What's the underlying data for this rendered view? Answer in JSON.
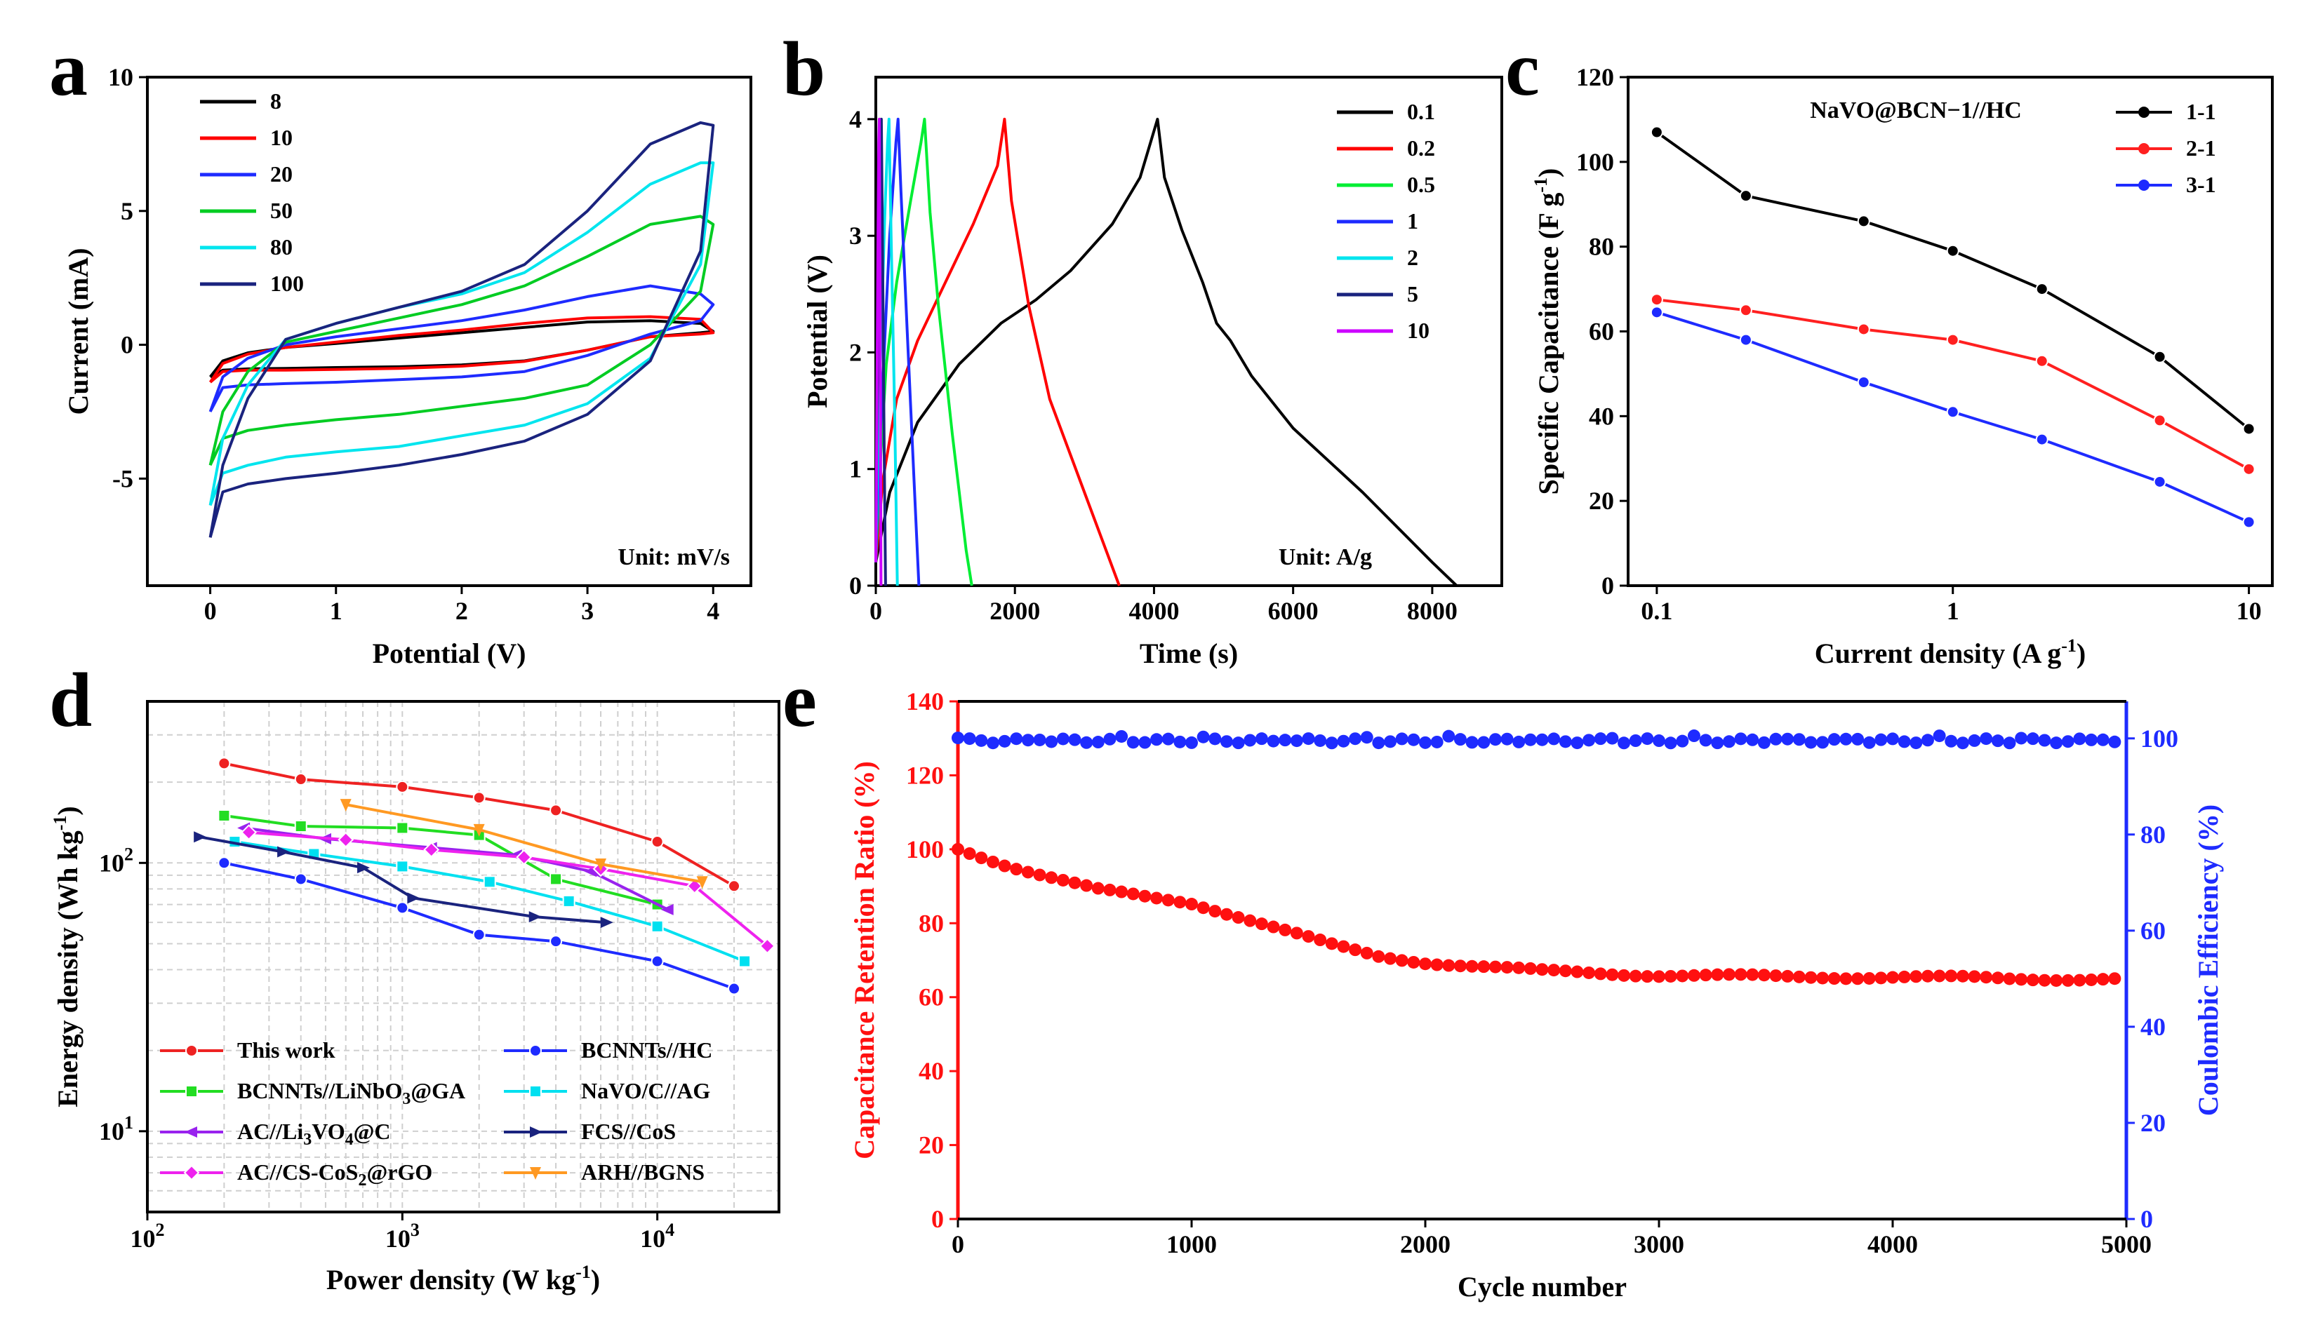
{
  "chart_data": [
    {
      "panel": "a",
      "type": "line",
      "xlabel": "Potential (V)",
      "ylabel": "Current (mA)",
      "xlim": [
        -0.5,
        4.3
      ],
      "ylim": [
        -9,
        10
      ],
      "xticks": [
        0,
        1,
        2,
        3,
        4
      ],
      "yticks": [
        -5,
        0,
        5,
        10
      ],
      "annotation": "Unit: mV/s",
      "series": [
        {
          "name": "8",
          "color": "#000000",
          "x": [
            0,
            0.1,
            0.3,
            0.6,
            1,
            1.5,
            2,
            2.5,
            3,
            3.5,
            3.9,
            4,
            3.9,
            3.5,
            3,
            2.5,
            2,
            1.5,
            1,
            0.6,
            0.3,
            0.1,
            0
          ],
          "y": [
            -1.2,
            -0.95,
            -0.9,
            -0.88,
            -0.85,
            -0.82,
            -0.75,
            -0.6,
            -0.2,
            0.3,
            0.45,
            0.5,
            0.8,
            0.9,
            0.85,
            0.65,
            0.45,
            0.25,
            0.05,
            -0.1,
            -0.3,
            -0.6,
            -1.2
          ]
        },
        {
          "name": "10",
          "color": "#ff0000",
          "x": [
            0,
            0.1,
            0.3,
            0.6,
            1,
            1.5,
            2,
            2.5,
            3,
            3.5,
            3.9,
            4,
            3.9,
            3.5,
            3,
            2.5,
            2,
            1.5,
            1,
            0.6,
            0.3,
            0.1,
            0
          ],
          "y": [
            -1.4,
            -1.0,
            -0.95,
            -0.95,
            -0.92,
            -0.88,
            -0.8,
            -0.62,
            -0.2,
            0.3,
            0.4,
            0.45,
            0.95,
            1.05,
            1.0,
            0.8,
            0.55,
            0.35,
            0.1,
            -0.1,
            -0.35,
            -0.7,
            -1.4
          ]
        },
        {
          "name": "20",
          "color": "#1e2bff",
          "x": [
            0,
            0.1,
            0.3,
            0.6,
            1,
            1.5,
            2,
            2.5,
            3,
            3.5,
            3.9,
            4,
            3.9,
            3.5,
            3,
            2.5,
            2,
            1.5,
            1,
            0.6,
            0.3,
            0.1,
            0
          ],
          "y": [
            -2.5,
            -1.6,
            -1.5,
            -1.45,
            -1.4,
            -1.3,
            -1.2,
            -1.0,
            -0.4,
            0.4,
            0.9,
            1.5,
            1.9,
            2.2,
            1.8,
            1.3,
            0.9,
            0.6,
            0.3,
            0.0,
            -0.5,
            -1.2,
            -2.5
          ]
        },
        {
          "name": "50",
          "color": "#00cc22",
          "x": [
            0,
            0.1,
            0.3,
            0.6,
            1,
            1.5,
            2,
            2.5,
            3,
            3.5,
            3.9,
            4,
            3.9,
            3.5,
            3,
            2.5,
            2,
            1.5,
            1,
            0.6,
            0.3,
            0.1,
            0
          ],
          "y": [
            -4.5,
            -3.5,
            -3.2,
            -3.0,
            -2.8,
            -2.6,
            -2.3,
            -2.0,
            -1.5,
            0.0,
            2.0,
            4.5,
            4.8,
            4.5,
            3.3,
            2.2,
            1.5,
            1.0,
            0.5,
            0.1,
            -1.0,
            -2.5,
            -4.5
          ]
        },
        {
          "name": "80",
          "color": "#00e5ee",
          "x": [
            0,
            0.1,
            0.3,
            0.6,
            1,
            1.5,
            2,
            2.5,
            3,
            3.5,
            3.9,
            4,
            3.9,
            3.5,
            3,
            2.5,
            2,
            1.5,
            1,
            0.6,
            0.3,
            0.1,
            0
          ],
          "y": [
            -6.0,
            -4.8,
            -4.5,
            -4.2,
            -4.0,
            -3.8,
            -3.4,
            -3.0,
            -2.2,
            -0.5,
            3.0,
            6.8,
            6.8,
            6.0,
            4.2,
            2.7,
            1.9,
            1.4,
            0.8,
            0.2,
            -1.5,
            -3.5,
            -6.0
          ]
        },
        {
          "name": "100",
          "color": "#1a237e",
          "x": [
            0,
            0.1,
            0.3,
            0.6,
            1,
            1.5,
            2,
            2.5,
            3,
            3.5,
            3.9,
            4,
            3.9,
            3.5,
            3,
            2.5,
            2,
            1.5,
            1,
            0.6,
            0.3,
            0.1,
            0
          ],
          "y": [
            -7.2,
            -5.5,
            -5.2,
            -5.0,
            -4.8,
            -4.5,
            -4.1,
            -3.6,
            -2.6,
            -0.6,
            3.5,
            8.2,
            8.3,
            7.5,
            5.0,
            3.0,
            2.0,
            1.4,
            0.8,
            0.2,
            -2.0,
            -4.5,
            -7.2
          ]
        }
      ]
    },
    {
      "panel": "b",
      "type": "line",
      "xlabel": "Time (s)",
      "ylabel": "Potential (V)",
      "xlim": [
        0,
        9000
      ],
      "ylim": [
        0,
        4
      ],
      "xticks": [
        0,
        2000,
        4000,
        6000,
        8000
      ],
      "yticks": [
        0,
        1,
        2,
        3,
        4
      ],
      "annotation": "Unit: A/g",
      "series": [
        {
          "name": "0.1",
          "color": "#000000",
          "x": [
            0,
            200,
            600,
            1200,
            1800,
            2300,
            2800,
            3400,
            3800,
            4050,
            4150,
            4400,
            4700,
            4900,
            5100,
            5400,
            6000,
            7000,
            8000,
            8350
          ],
          "y": [
            0.2,
            0.8,
            1.4,
            1.9,
            2.25,
            2.45,
            2.7,
            3.1,
            3.5,
            4.0,
            3.5,
            3.05,
            2.6,
            2.25,
            2.1,
            1.8,
            1.35,
            0.8,
            0.2,
            0
          ]
        },
        {
          "name": "0.2",
          "color": "#ff0000",
          "x": [
            0,
            100,
            300,
            600,
            1000,
            1400,
            1750,
            1850,
            1950,
            2200,
            2500,
            3000,
            3500
          ],
          "y": [
            0.2,
            0.9,
            1.6,
            2.1,
            2.6,
            3.1,
            3.6,
            4.0,
            3.3,
            2.4,
            1.6,
            0.8,
            0
          ]
        },
        {
          "name": "0.5",
          "color": "#00ee33",
          "x": [
            0,
            60,
            150,
            300,
            500,
            650,
            700,
            780,
            900,
            1100,
            1300,
            1380
          ],
          "y": [
            0.2,
            1.0,
            1.9,
            2.6,
            3.3,
            3.8,
            4.0,
            3.2,
            2.4,
            1.3,
            0.3,
            0
          ]
        },
        {
          "name": "1",
          "color": "#1e2bff",
          "x": [
            0,
            40,
            120,
            200,
            290,
            320,
            360,
            450,
            550,
            620
          ],
          "y": [
            0.2,
            1.0,
            2.0,
            3.0,
            3.8,
            4.0,
            3.4,
            2.2,
            0.9,
            0
          ]
        },
        {
          "name": "2",
          "color": "#00e5ee",
          "x": [
            0,
            30,
            80,
            130,
            170,
            190,
            220,
            270,
            310
          ],
          "y": [
            0.2,
            1.2,
            2.2,
            3.2,
            3.8,
            4.0,
            3.0,
            1.5,
            0
          ]
        },
        {
          "name": "5",
          "color": "#1a237e",
          "x": [
            0,
            20,
            45,
            65,
            80,
            95,
            120,
            140
          ],
          "y": [
            0.2,
            1.5,
            2.8,
            3.7,
            4.0,
            3.0,
            1.2,
            0
          ]
        },
        {
          "name": "10",
          "color": "#cc00ff",
          "x": [
            0,
            15,
            30,
            42,
            50,
            62,
            75
          ],
          "y": [
            0.2,
            1.5,
            2.9,
            3.8,
            4.0,
            2.5,
            0
          ]
        }
      ]
    },
    {
      "panel": "c",
      "type": "line",
      "xscale": "log",
      "xlabel": "Current density (A g-1)",
      "ylabel": "Specific Capacitance (F g-1)",
      "xlim": [
        0.08,
        12
      ],
      "ylim": [
        0,
        120
      ],
      "xticks": [
        "0.1",
        "1",
        "10"
      ],
      "yticks": [
        0,
        20,
        40,
        60,
        80,
        100,
        120
      ],
      "annotation": "NaVO@BCN−1//HC",
      "x": [
        0.1,
        0.2,
        0.5,
        1,
        2,
        5,
        10
      ],
      "series": [
        {
          "name": "1-1",
          "color": "#000000",
          "values": [
            107,
            92,
            86,
            79,
            70,
            54,
            37
          ]
        },
        {
          "name": "2-1",
          "color": "#ff2020",
          "values": [
            67.5,
            65,
            60.5,
            58,
            53,
            39,
            27.5
          ]
        },
        {
          "name": "3-1",
          "color": "#1e2bff",
          "values": [
            64.5,
            58,
            48,
            41,
            34.5,
            24.5,
            15
          ]
        }
      ]
    },
    {
      "panel": "d",
      "type": "line",
      "xscale": "log",
      "yscale": "log",
      "xlabel": "Power density (W kg-1)",
      "ylabel": "Energy density (Wh kg-1)",
      "xlim": [
        100,
        30000
      ],
      "ylim": [
        5,
        400
      ],
      "xtick_labels": [
        "10",
        "10",
        "10"
      ],
      "xtick_exps": [
        "2",
        "3",
        "4"
      ],
      "ytick_labels": [
        "10",
        "10"
      ],
      "ytick_exps": [
        "1",
        "2"
      ],
      "series": [
        {
          "name": "This work",
          "color": "#ee2222",
          "marker": "circle",
          "x": [
            200,
            400,
            1000,
            2000,
            4000,
            10000,
            20000
          ],
          "y": [
            235,
            205,
            192,
            175,
            157,
            120,
            82
          ]
        },
        {
          "name": "BCNNTs//HC",
          "color": "#1e2bff",
          "marker": "circle",
          "x": [
            200,
            400,
            1000,
            2000,
            4000,
            10000,
            20000
          ],
          "y": [
            100,
            87,
            68,
            54,
            51,
            43,
            34
          ]
        },
        {
          "name": "BCNNTs//LiNbO3@GA",
          "color": "#22dd22",
          "marker": "square",
          "x": [
            200,
            400,
            1000,
            2000,
            4000,
            10000
          ],
          "y": [
            150,
            137,
            135,
            127,
            87,
            70
          ]
        },
        {
          "name": "NaVO/C//AG",
          "color": "#00e0f0",
          "marker": "square",
          "x": [
            220,
            450,
            1000,
            2200,
            4500,
            10000,
            22000
          ],
          "y": [
            120,
            108,
            97,
            85,
            72,
            58,
            43
          ]
        },
        {
          "name": "AC//Li3VO4@C",
          "color": "#9922ee",
          "marker": "tri-left",
          "x": [
            240,
            500,
            1300,
            2800,
            5500,
            11000
          ],
          "y": [
            135,
            123,
            114,
            107,
            93,
            67
          ]
        },
        {
          "name": "FCS//CoS",
          "color": "#1a237e",
          "marker": "tri-right",
          "x": [
            160,
            340,
            700,
            1100,
            3300,
            6300
          ],
          "y": [
            125,
            110,
            96,
            74,
            63,
            60
          ]
        },
        {
          "name": "AC//CS-CoS2@rGO",
          "color": "#ee22ee",
          "marker": "diamond",
          "x": [
            250,
            600,
            1300,
            3000,
            6000,
            14000,
            27000
          ],
          "y": [
            130,
            122,
            112,
            105,
            95,
            82,
            49
          ]
        },
        {
          "name": "ARH//BGNS",
          "color": "#ff9922",
          "marker": "tri-down",
          "x": [
            600,
            2000,
            6000,
            15000
          ],
          "y": [
            165,
            133,
            99,
            85
          ]
        }
      ],
      "legend": [
        {
          "label": "This work",
          "sub": ""
        },
        {
          "label": "BCNNTs//HC",
          "sub": ""
        },
        {
          "label": "BCNNTs//LiNbO",
          "sub": "3",
          "suffix": "@GA"
        },
        {
          "label": "NaVO/C//AG",
          "sub": ""
        },
        {
          "label": "AC//Li",
          "sub": "3",
          "suffix": "VO",
          "sub2": "4",
          "suffix2": "@C"
        },
        {
          "label": "FCS//CoS",
          "sub": ""
        },
        {
          "label": "AC//CS-CoS",
          "sub": "2",
          "suffix": "@rGO"
        },
        {
          "label": "ARH//BGNS",
          "sub": ""
        }
      ]
    },
    {
      "panel": "e",
      "type": "scatter",
      "xlabel": "Cycle number",
      "ylabel": "Capacitance Retention Ratio (%)",
      "ylabel_right": "Coulombic Efficiency (%)",
      "xlim": [
        0,
        5000
      ],
      "ylim": [
        0,
        140
      ],
      "ylim_right": [
        0,
        107.7
      ],
      "xticks": [
        0,
        1000,
        2000,
        3000,
        4000,
        5000
      ],
      "yticks": [
        0,
        20,
        40,
        60,
        80,
        100,
        120,
        140
      ],
      "yticks_right": [
        0,
        20,
        40,
        60,
        80,
        100
      ],
      "series": [
        {
          "name": "Capacitance Retention Ratio",
          "color": "#ff1010",
          "axis": "left",
          "x": [
            0,
            200,
            400,
            600,
            800,
            1000,
            1200,
            1400,
            1600,
            1800,
            2000,
            2200,
            2500,
            3000,
            3500,
            4000,
            4500,
            4950
          ],
          "y": [
            100,
            96,
            92.5,
            89,
            87,
            85.5,
            82,
            78,
            74,
            71,
            69.5,
            68.5,
            67,
            66,
            65.5,
            65.5,
            65,
            65
          ]
        },
        {
          "name": "Coulombic Efficiency",
          "color": "#1e2bff",
          "axis": "right",
          "x": [
            0,
            4950
          ],
          "y": [
            99.5,
            99.5
          ]
        }
      ]
    }
  ],
  "panel_labels": [
    "a",
    "b",
    "c",
    "d",
    "e"
  ]
}
